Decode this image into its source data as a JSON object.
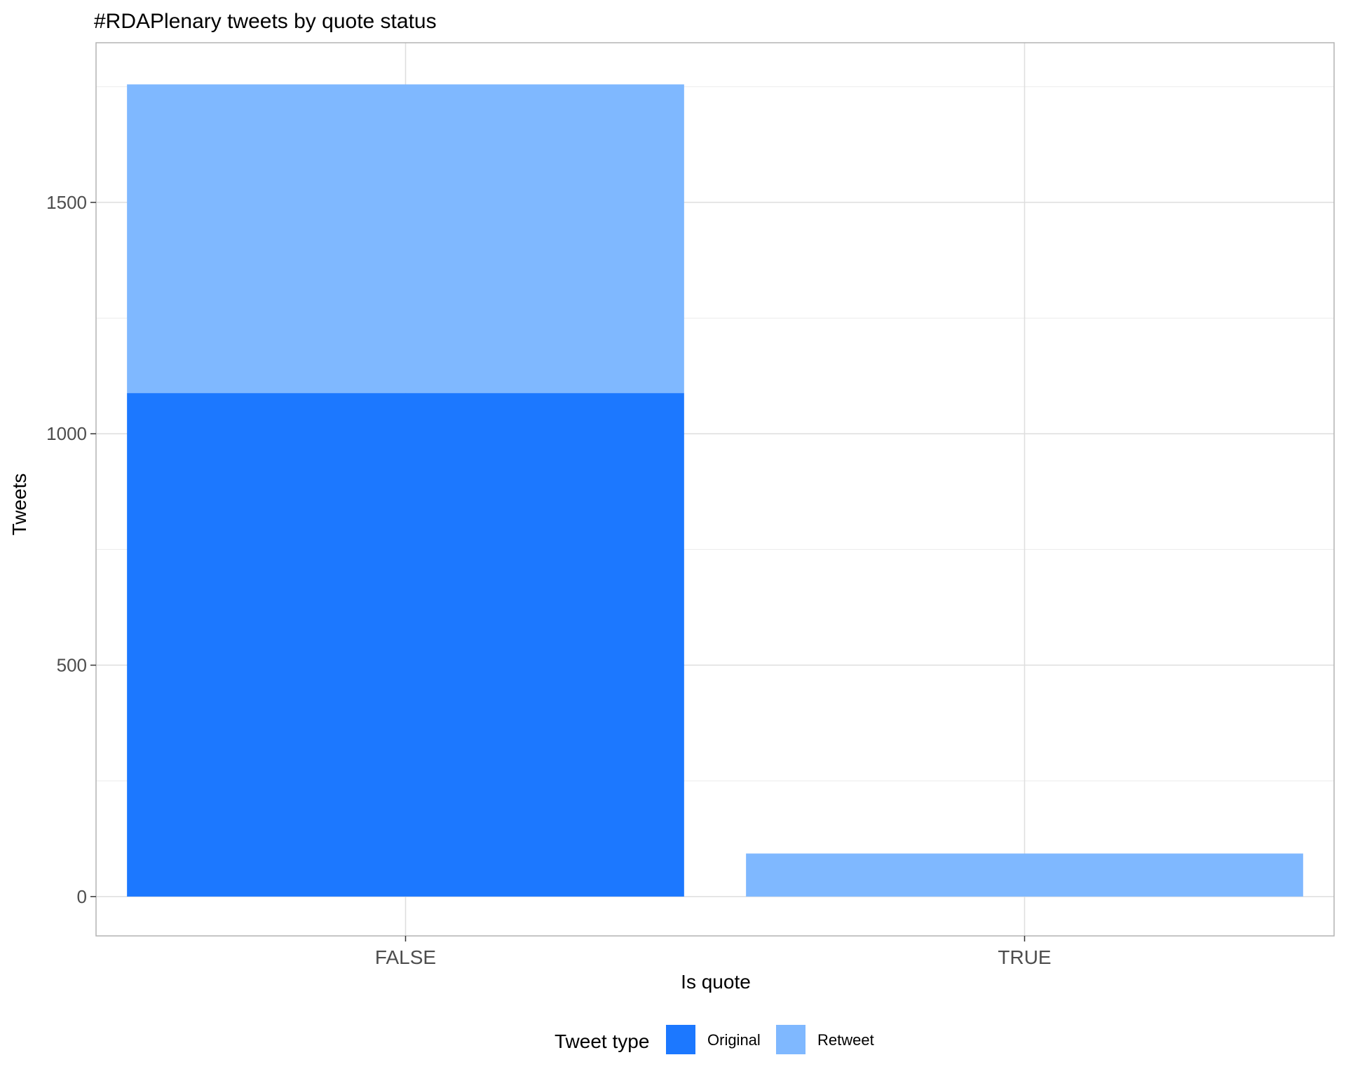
{
  "chart_data": {
    "type": "bar",
    "stacked": true,
    "title": "#RDAPlenary tweets by quote status",
    "xlabel": "Is quote",
    "ylabel": "Tweets",
    "categories": [
      "FALSE",
      "TRUE"
    ],
    "series": [
      {
        "name": "Original",
        "values": [
          1088,
          0
        ],
        "color": "#1c78ff"
      },
      {
        "name": "Retweet",
        "values": [
          667,
          93
        ],
        "color": "#7fb8ff"
      }
    ],
    "ylim": [
      -85,
      1845
    ],
    "yticks": [
      0,
      500,
      1000,
      1500
    ],
    "grid": true,
    "legend": {
      "title": "Tweet type",
      "position": "bottom"
    }
  }
}
